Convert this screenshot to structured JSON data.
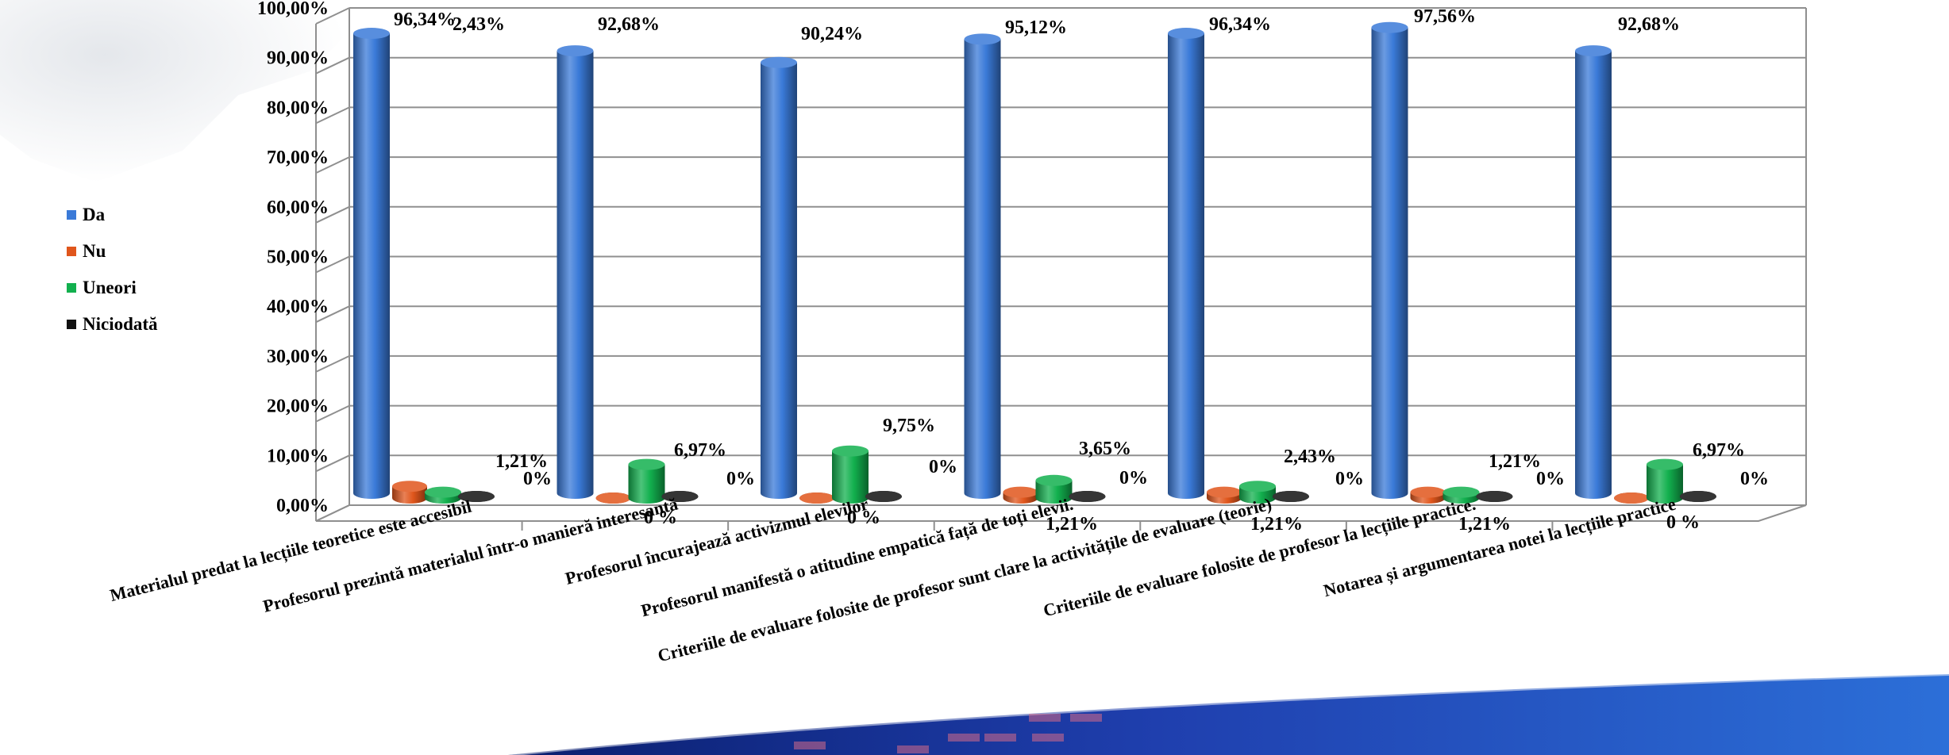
{
  "colors": {
    "Da": "#3a7ad8",
    "Nu": "#e0561c",
    "Uneori": "#12b04e",
    "Niciodata": "#111111"
  },
  "legend": [
    {
      "name": "Da",
      "color": "#3a7ad8"
    },
    {
      "name": "Nu",
      "color": "#e0561c"
    },
    {
      "name": "Uneori",
      "color": "#12b04e"
    },
    {
      "name": "Niciodată",
      "color": "#111111"
    }
  ],
  "chart_data": {
    "type": "bar",
    "title": "",
    "xlabel": "",
    "ylabel": "",
    "ylim": [
      0,
      100
    ],
    "ytick_labels": [
      "0,00%",
      "10,00%",
      "20,00%",
      "30,00%",
      "40,00%",
      "50,00%",
      "60,00%",
      "70,00%",
      "80,00%",
      "90,00%",
      "100,00%"
    ],
    "grid": true,
    "legend_position": "left",
    "categories": [
      "Materialul predat la lecțiile teoretice este accesibil",
      "Profesorul prezintă materialul într-o manieră interesantă",
      "Profesorul încurajează activizmul elevilor",
      "Profesorul manifestă o atitudine empatică față de toți elevii.",
      "Criteriile de evaluare folosite de profesor sunt clare la activitățile de evaluare (teorie)",
      "Criteriile de evaluare folosite de profesor la lecțiile practice.",
      "Notarea și argumentarea notei la lecțiile practice"
    ],
    "series": [
      {
        "name": "Da",
        "values": [
          96.34,
          92.68,
          90.24,
          95.12,
          96.34,
          97.56,
          92.68
        ],
        "labels": [
          "96,34%",
          "92,68%",
          "90,24%",
          "95,12%",
          "96,34%",
          "97,56%",
          "92,68%"
        ]
      },
      {
        "name": "Nu",
        "values": [
          2.43,
          0,
          0,
          1.21,
          1.21,
          1.21,
          0
        ],
        "labels": [
          "2,43%",
          "0 %",
          "0 %",
          "1,21%",
          "1,21%",
          "1,21%",
          "0  %"
        ]
      },
      {
        "name": "Uneori",
        "values": [
          1.21,
          6.97,
          9.75,
          3.65,
          2.43,
          1.21,
          6.97
        ],
        "labels": [
          "1,21%",
          "6,97%",
          "9,75%",
          "3,65%",
          "2,43%",
          "1,21%",
          "6,97%"
        ]
      },
      {
        "name": "Niciodată",
        "values": [
          0,
          0,
          0,
          0,
          0,
          0,
          0
        ],
        "labels": [
          "0%",
          "0%",
          "0%",
          "0%",
          "0%",
          "0%",
          "0%"
        ]
      }
    ]
  }
}
